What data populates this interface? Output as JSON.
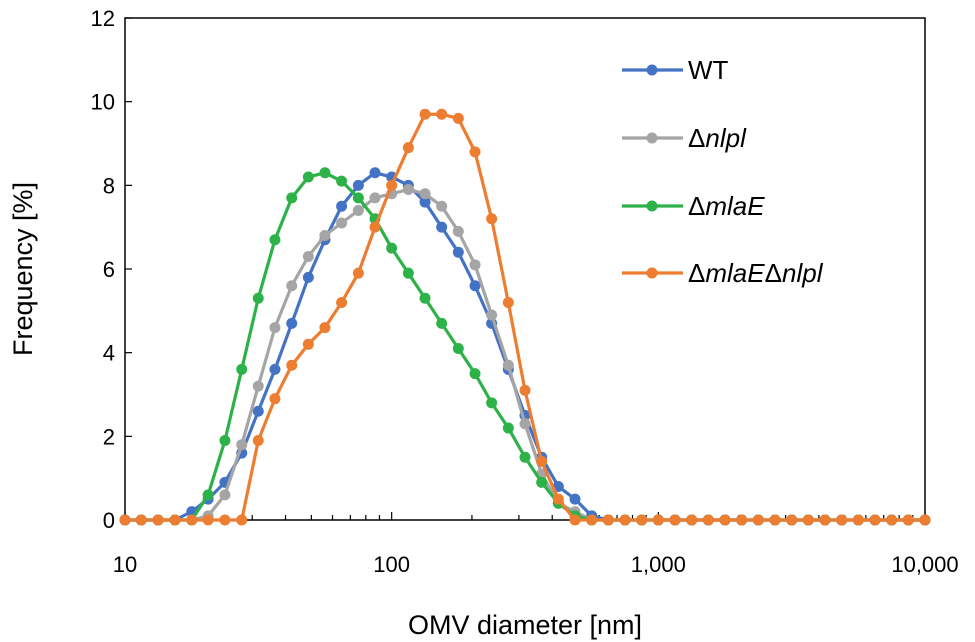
{
  "chart_data": {
    "type": "line",
    "title": "",
    "xlabel": "OMV diameter [nm]",
    "ylabel": "Frequency [%]",
    "xscale": "log",
    "xlim": [
      10,
      10000
    ],
    "ylim": [
      0,
      12
    ],
    "x_ticks": [
      10,
      100,
      1000,
      10000
    ],
    "x_tick_labels": [
      "10",
      "100",
      "1,000",
      "10,000"
    ],
    "y_ticks": [
      0,
      2,
      4,
      6,
      8,
      10,
      12
    ],
    "y_tick_labels": [
      "0",
      "2",
      "4",
      "6",
      "8",
      "10",
      "12"
    ],
    "grid": false,
    "legend_position": "top-right",
    "x": [
      10,
      11.5,
      13.3,
      15.4,
      17.8,
      20.5,
      23.7,
      27.4,
      31.6,
      36.5,
      42.2,
      48.7,
      56.2,
      64.9,
      75,
      86.6,
      100,
      115.5,
      133.4,
      154,
      177.8,
      205.4,
      237.1,
      273.8,
      316.2,
      365.2,
      421.7,
      487,
      562.3,
      649.4,
      749.9,
      866,
      1000,
      1154.8,
      1333.5,
      1539.9,
      1778.3,
      2053.5,
      2371.4,
      2738.4,
      3162.3,
      3651.7,
      4217,
      4869.7,
      5623.4,
      6493.8,
      7498.9,
      8659.6,
      10000
    ],
    "series": [
      {
        "name": "WT",
        "legend_label": "WT",
        "legend_delta": false,
        "color": "#4472C4",
        "values": [
          0,
          0,
          0,
          0,
          0.2,
          0.5,
          0.9,
          1.6,
          2.6,
          3.6,
          4.7,
          5.8,
          6.7,
          7.5,
          8.0,
          8.3,
          8.2,
          8.0,
          7.6,
          7.0,
          6.4,
          5.6,
          4.7,
          3.6,
          2.5,
          1.5,
          0.8,
          0.5,
          0.1,
          0,
          0,
          0,
          0,
          0,
          0,
          0,
          0,
          0,
          0,
          0,
          0,
          0,
          0,
          0,
          0,
          0,
          0,
          0,
          0
        ]
      },
      {
        "name": "Δnlpl",
        "legend_label": "nlpl",
        "legend_delta": true,
        "color": "#A5A5A5",
        "values": [
          0,
          0,
          0,
          0,
          0,
          0.1,
          0.6,
          1.8,
          3.2,
          4.6,
          5.6,
          6.3,
          6.8,
          7.1,
          7.4,
          7.7,
          7.8,
          7.9,
          7.8,
          7.5,
          6.9,
          6.1,
          4.9,
          3.7,
          2.3,
          1.1,
          0.4,
          0.2,
          0,
          0,
          0,
          0,
          0,
          0,
          0,
          0,
          0,
          0,
          0,
          0,
          0,
          0,
          0,
          0,
          0,
          0,
          0,
          0,
          0
        ]
      },
      {
        "name": "ΔmlaE",
        "legend_label": "mlaE",
        "legend_delta": true,
        "color": "#2DB24A",
        "values": [
          0,
          0,
          0,
          0,
          0,
          0.6,
          1.9,
          3.6,
          5.3,
          6.7,
          7.7,
          8.2,
          8.3,
          8.1,
          7.7,
          7.2,
          6.5,
          5.9,
          5.3,
          4.7,
          4.1,
          3.5,
          2.8,
          2.2,
          1.5,
          0.9,
          0.4,
          0.1,
          0,
          0,
          0,
          0,
          0,
          0,
          0,
          0,
          0,
          0,
          0,
          0,
          0,
          0,
          0,
          0,
          0,
          0,
          0,
          0,
          0
        ]
      },
      {
        "name": "ΔmlaEΔnlpl",
        "legend_label": "mlaE",
        "legend_label_2": "nlpl",
        "legend_delta": true,
        "color": "#ED7D31",
        "values": [
          0,
          0,
          0,
          0,
          0,
          0,
          0,
          0,
          1.9,
          2.9,
          3.7,
          4.2,
          4.6,
          5.2,
          5.9,
          7.0,
          8.0,
          8.9,
          9.7,
          9.7,
          9.6,
          8.8,
          7.2,
          5.2,
          3.1,
          1.4,
          0.5,
          0,
          0,
          0,
          0,
          0,
          0,
          0,
          0,
          0,
          0,
          0,
          0,
          0,
          0,
          0,
          0,
          0,
          0,
          0,
          0,
          0,
          0
        ]
      }
    ],
    "delta_symbol": "Δ"
  }
}
